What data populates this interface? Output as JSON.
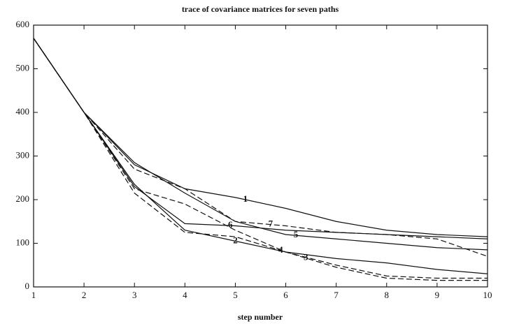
{
  "chart_data": {
    "type": "line",
    "title": "trace of covariance matrices for seven paths",
    "x_label": "step number",
    "x": [
      1,
      2,
      3,
      4,
      5,
      6,
      7,
      8,
      9,
      10
    ],
    "xlim": [
      1,
      10
    ],
    "xticks": [
      1,
      2,
      3,
      4,
      5,
      6,
      7,
      8,
      9,
      10
    ],
    "ylim": [
      0,
      600
    ],
    "yticks": [
      0,
      100,
      200,
      300,
      400,
      500,
      600
    ],
    "series": [
      {
        "name": "1",
        "color": "#111111",
        "values": [
          570,
          400,
          280,
          225,
          205,
          180,
          150,
          130,
          120,
          115
        ]
      },
      {
        "name": "2",
        "color": "#111111",
        "values": [
          570,
          400,
          235,
          130,
          105,
          80,
          65,
          55,
          40,
          30
        ]
      },
      {
        "name": "3",
        "color": "#111111",
        "dash": true,
        "values": [
          570,
          400,
          225,
          190,
          130,
          80,
          45,
          20,
          15,
          15
        ]
      },
      {
        "name": "4",
        "color": "#111111",
        "dash": true,
        "values": [
          570,
          400,
          215,
          125,
          115,
          80,
          50,
          25,
          20,
          20
        ]
      },
      {
        "name": "5",
        "color": "#111111",
        "values": [
          570,
          400,
          285,
          215,
          150,
          120,
          110,
          100,
          90,
          85
        ]
      },
      {
        "name": "6",
        "color": "#111111",
        "values": [
          570,
          400,
          230,
          145,
          140,
          130,
          125,
          120,
          115,
          110
        ]
      },
      {
        "name": "7",
        "color": "#111111",
        "dash": true,
        "values": [
          570,
          400,
          270,
          225,
          150,
          140,
          125,
          120,
          110,
          70
        ]
      }
    ]
  }
}
